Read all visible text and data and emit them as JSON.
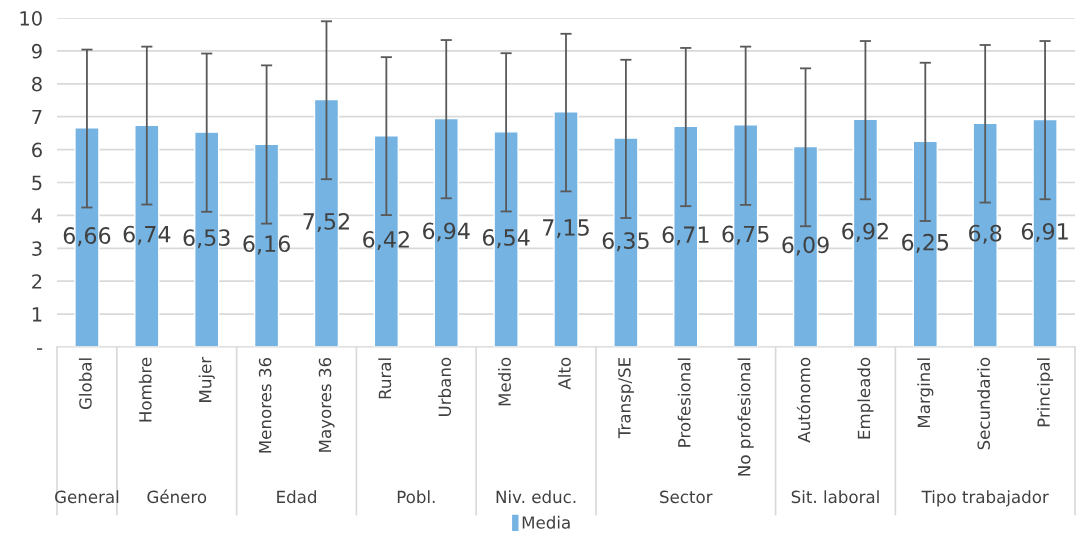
{
  "chart_data": {
    "type": "bar",
    "categories": [
      "Global",
      "Hombre",
      "Mujer",
      "Menores 36",
      "Mayores 36",
      "Rural",
      "Urbano",
      "Medio",
      "Alto",
      "Transp/SE",
      "Profesional",
      "No profesional",
      "Autónomo",
      "Empleado",
      "Marginal",
      "Secundario",
      "Principal"
    ],
    "series": [
      {
        "name": "Media",
        "color": "#74b3e2",
        "values": [
          6.66,
          6.74,
          6.53,
          6.16,
          7.52,
          6.42,
          6.94,
          6.54,
          7.15,
          6.35,
          6.71,
          6.75,
          6.09,
          6.92,
          6.25,
          6.8,
          6.91
        ],
        "errors": [
          [
            4.24,
            9.04
          ],
          [
            4.33,
            9.13
          ],
          [
            4.11,
            8.92
          ],
          [
            3.75,
            8.56
          ],
          [
            5.1,
            9.9
          ],
          [
            4.01,
            8.81
          ],
          [
            4.52,
            9.33
          ],
          [
            4.12,
            8.93
          ],
          [
            4.73,
            9.52
          ],
          [
            3.92,
            8.73
          ],
          [
            4.28,
            9.09
          ],
          [
            4.32,
            9.13
          ],
          [
            3.67,
            8.47
          ],
          [
            4.49,
            9.3
          ],
          [
            3.83,
            8.64
          ],
          [
            4.39,
            9.18
          ],
          [
            4.49,
            9.3
          ]
        ]
      }
    ],
    "value_labels": [
      "6,66",
      "6,74",
      "6,53",
      "6,16",
      "7,52",
      "6,42",
      "6,94",
      "6,54",
      "7,15",
      "6,35",
      "6,71",
      "6,75",
      "6,09",
      "6,92",
      "6,25",
      "6,8",
      "6,91"
    ],
    "ylim": [
      0,
      10
    ],
    "yticks": [
      {
        "value": 0,
        "label": "-"
      },
      1,
      2,
      3,
      4,
      5,
      6,
      7,
      8,
      9,
      10
    ],
    "grid": "y",
    "legend": "bottom",
    "annotations": [
      "General",
      "Género",
      "Edad",
      "Pobl.",
      "Niv. educ.",
      "Sector",
      "Sit. laboral",
      "Tipo trabajador"
    ]
  }
}
